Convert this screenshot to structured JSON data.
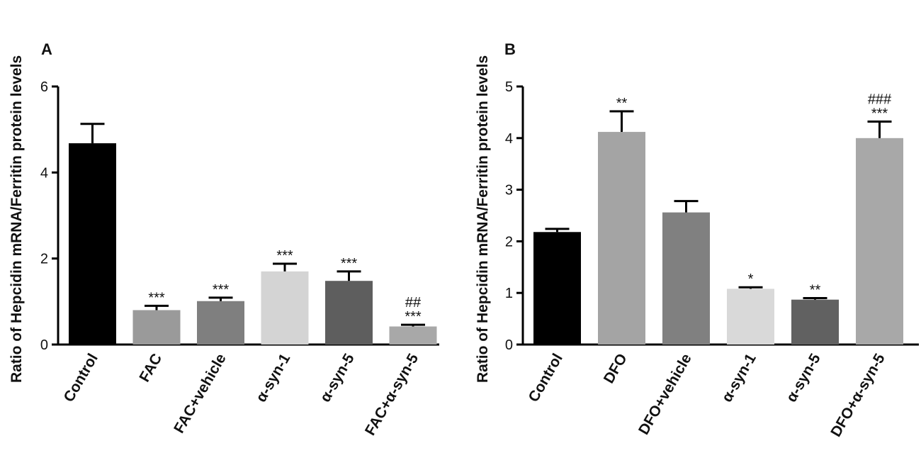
{
  "chart_data": [
    {
      "type": "bar",
      "panel": "A",
      "title": "",
      "ylabel": "Ratio of Hepcidin mRNA/Ferritin protein levels",
      "xlabel": "",
      "ylim": [
        0,
        6
      ],
      "yticks": [
        0,
        2,
        4,
        6
      ],
      "categories": [
        "Control",
        "FAC",
        "FAC+vehicle",
        "α-syn-1",
        "α-syn-5",
        "FAC+α-syn-5"
      ],
      "values": [
        4.68,
        0.8,
        1.01,
        1.7,
        1.48,
        0.42
      ],
      "errors": [
        0.45,
        0.1,
        0.08,
        0.18,
        0.22,
        0.04
      ],
      "colors": [
        "#000000",
        "#9a9a9a",
        "#7f7f7f",
        "#d4d4d4",
        "#5e5e5e",
        "#a8a8a8"
      ],
      "significance": [
        [],
        [
          "***"
        ],
        [
          "***"
        ],
        [
          "***"
        ],
        [
          "***"
        ],
        [
          "***",
          "##"
        ]
      ]
    },
    {
      "type": "bar",
      "panel": "B",
      "title": "",
      "ylabel": "Ratio of Hepcidin mRNA/Ferritin protein levels",
      "xlabel": "",
      "ylim": [
        0,
        5
      ],
      "yticks": [
        0,
        1,
        2,
        3,
        4,
        5
      ],
      "categories": [
        "Control",
        "DFO",
        "DFO+vehicle",
        "α-syn-1",
        "α-syn-5",
        "DFO+α-syn-5"
      ],
      "values": [
        2.18,
        4.12,
        2.56,
        1.08,
        0.87,
        4.0
      ],
      "errors": [
        0.06,
        0.4,
        0.22,
        0.03,
        0.03,
        0.32
      ],
      "colors": [
        "#000000",
        "#a4a4a4",
        "#808080",
        "#d9d9d9",
        "#616161",
        "#a8a8a8"
      ],
      "significance": [
        [],
        [
          "**"
        ],
        [],
        [
          "*"
        ],
        [
          "**"
        ],
        [
          "***",
          "###"
        ]
      ]
    }
  ]
}
